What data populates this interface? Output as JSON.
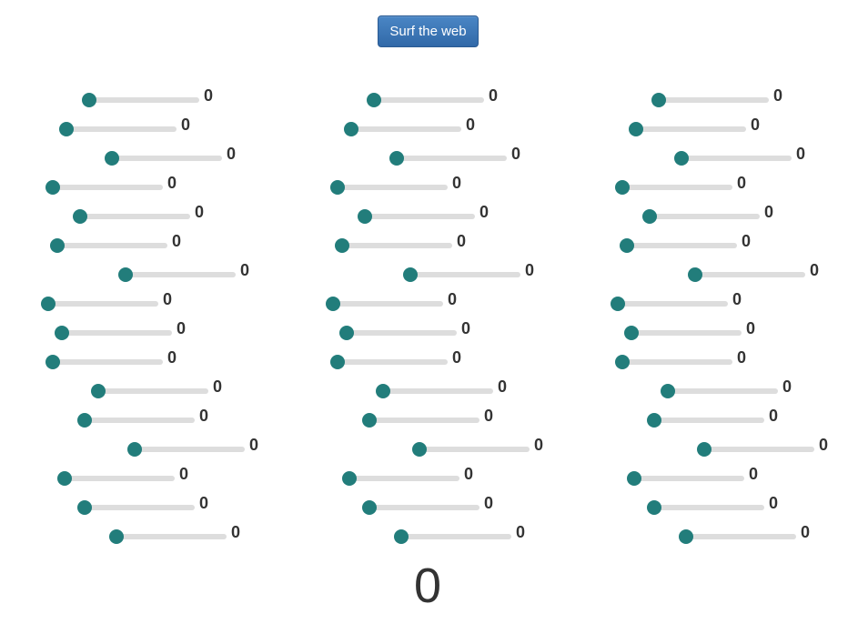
{
  "header": {
    "button_label": "Surf the web"
  },
  "colors": {
    "thumb": "#227d7b",
    "track": "#dddddd",
    "button": "#3b77b8"
  },
  "columns": [
    {
      "sliders": [
        {
          "value": 0,
          "label": "0"
        },
        {
          "value": 0,
          "label": "0"
        },
        {
          "value": 0,
          "label": "0"
        },
        {
          "value": 0,
          "label": "0"
        },
        {
          "value": 0,
          "label": "0"
        },
        {
          "value": 0,
          "label": "0"
        },
        {
          "value": 0,
          "label": "0"
        },
        {
          "value": 0,
          "label": "0"
        },
        {
          "value": 0,
          "label": "0"
        },
        {
          "value": 0,
          "label": "0"
        },
        {
          "value": 0,
          "label": "0"
        },
        {
          "value": 0,
          "label": "0"
        },
        {
          "value": 0,
          "label": "0"
        },
        {
          "value": 0,
          "label": "0"
        },
        {
          "value": 0,
          "label": "0"
        },
        {
          "value": 0,
          "label": "0"
        }
      ]
    },
    {
      "sliders": [
        {
          "value": 0,
          "label": "0"
        },
        {
          "value": 0,
          "label": "0"
        },
        {
          "value": 0,
          "label": "0"
        },
        {
          "value": 0,
          "label": "0"
        },
        {
          "value": 0,
          "label": "0"
        },
        {
          "value": 0,
          "label": "0"
        },
        {
          "value": 0,
          "label": "0"
        },
        {
          "value": 0,
          "label": "0"
        },
        {
          "value": 0,
          "label": "0"
        },
        {
          "value": 0,
          "label": "0"
        },
        {
          "value": 0,
          "label": "0"
        },
        {
          "value": 0,
          "label": "0"
        },
        {
          "value": 0,
          "label": "0"
        },
        {
          "value": 0,
          "label": "0"
        },
        {
          "value": 0,
          "label": "0"
        },
        {
          "value": 0,
          "label": "0"
        }
      ]
    },
    {
      "sliders": [
        {
          "value": 0,
          "label": "0"
        },
        {
          "value": 0,
          "label": "0"
        },
        {
          "value": 0,
          "label": "0"
        },
        {
          "value": 0,
          "label": "0"
        },
        {
          "value": 0,
          "label": "0"
        },
        {
          "value": 0,
          "label": "0"
        },
        {
          "value": 0,
          "label": "0"
        },
        {
          "value": 0,
          "label": "0"
        },
        {
          "value": 0,
          "label": "0"
        },
        {
          "value": 0,
          "label": "0"
        },
        {
          "value": 0,
          "label": "0"
        },
        {
          "value": 0,
          "label": "0"
        },
        {
          "value": 0,
          "label": "0"
        },
        {
          "value": 0,
          "label": "0"
        },
        {
          "value": 0,
          "label": "0"
        },
        {
          "value": 0,
          "label": "0"
        }
      ]
    }
  ],
  "total": "0"
}
